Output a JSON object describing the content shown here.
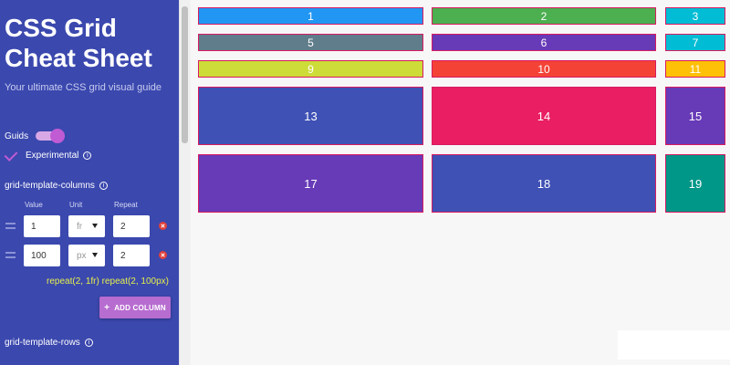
{
  "sidebar": {
    "title": "CSS Grid Cheat Sheet",
    "subtitle": "Your ultimate CSS grid visual guide",
    "guides_label": "Guids",
    "experimental_label": "Experimental",
    "columns_label": "grid-template-columns",
    "rows_label": "grid-template-rows",
    "col_headers": {
      "value": "Value",
      "unit": "Unit",
      "repeat": "Repeat"
    },
    "column_rows": [
      {
        "value": "1",
        "unit": "fr",
        "repeat": "2"
      },
      {
        "value": "100",
        "unit": "px",
        "repeat": "2"
      }
    ],
    "formula": "repeat(2, 1fr) repeat(2, 100px)",
    "add_column": "ADD COLUMN",
    "info_glyph": "i",
    "plus_glyph": "+"
  },
  "grid": {
    "cells": [
      "1",
      "2",
      "3",
      "5",
      "6",
      "7",
      "9",
      "10",
      "11",
      "13",
      "14",
      "15",
      "17",
      "18",
      "19"
    ],
    "colors": {
      "c1": "#2196f3",
      "c2": "#4caf50",
      "c3": "#00bcd4",
      "c5": "#607d8b",
      "c6": "#673ab7",
      "c7": "#00bcd4",
      "c9": "#cddc39",
      "c10": "#f44336",
      "c11": "#ffc107",
      "c13": "#3f51b5",
      "c14": "#e91e63",
      "c15": "#673ab7",
      "c17": "#673ab7",
      "c18": "#3f51b5",
      "c19": "#009688"
    }
  }
}
